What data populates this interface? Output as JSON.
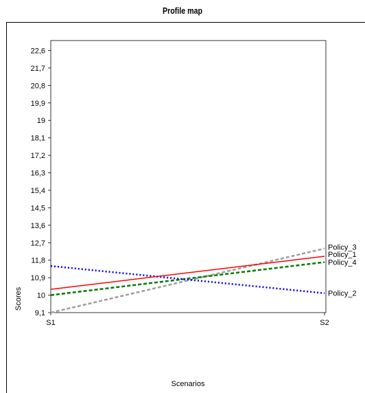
{
  "chart_data": {
    "type": "line",
    "title": "Profile map",
    "xlabel": "Scenarios",
    "ylabel": "Scores",
    "categories": [
      "S1",
      "S2"
    ],
    "ylim": [
      9.1,
      22.6
    ],
    "yticks": [
      "9,1",
      "10",
      "10,9",
      "11,8",
      "12,7",
      "13,6",
      "14,5",
      "15,4",
      "16,3",
      "17,2",
      "18,1",
      "19",
      "19,9",
      "20,8",
      "21,7",
      "22,6"
    ],
    "grid": false,
    "legend": "series labels at right end of lines",
    "series": [
      {
        "name": "Policy_1",
        "values": [
          10.3,
          12.0
        ],
        "color": "#ff0000",
        "style": "solid"
      },
      {
        "name": "Policy_2",
        "values": [
          11.5,
          10.1
        ],
        "color": "#0000ff",
        "style": "dotted"
      },
      {
        "name": "Policy_3",
        "values": [
          9.1,
          12.4
        ],
        "color": "#a0a0a0",
        "style": "dashed"
      },
      {
        "name": "Policy_4",
        "values": [
          10.0,
          11.7
        ],
        "color": "#008000",
        "style": "dashed"
      }
    ]
  }
}
